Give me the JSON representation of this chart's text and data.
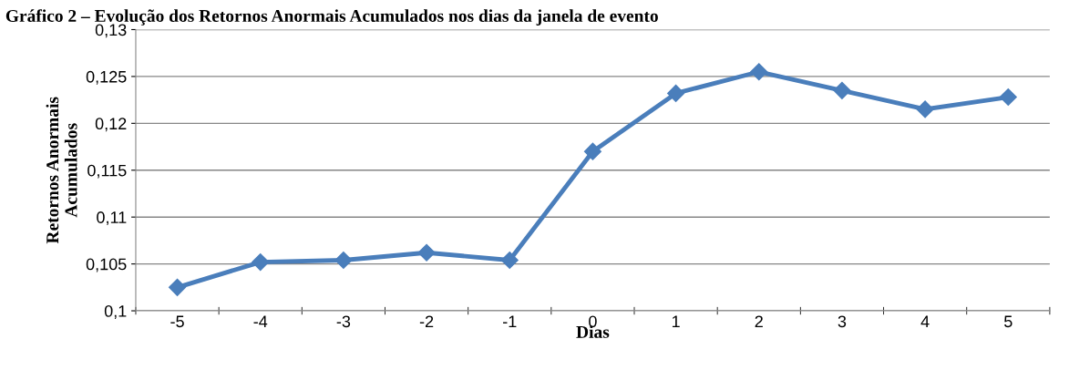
{
  "chart_data": {
    "type": "line",
    "title": "Gráfico 2 – Evolução dos Retornos Anormais Acumulados nos dias da janela de evento",
    "xlabel": "Dias",
    "ylabel": "Retornos Anormais\nAcumulados",
    "categories": [
      "-5",
      "-4",
      "-3",
      "-2",
      "-1",
      "0",
      "1",
      "2",
      "3",
      "4",
      "5"
    ],
    "series": [
      {
        "color": "#4a7ebb",
        "values": [
          0.1025,
          0.1052,
          0.1054,
          0.1062,
          0.1054,
          0.117,
          0.1232,
          0.1255,
          0.1235,
          0.1215,
          0.1228
        ]
      }
    ],
    "ylim": [
      0.1,
      0.13
    ],
    "yticks": [
      {
        "value": 0.1,
        "label": "0,1"
      },
      {
        "value": 0.105,
        "label": "0,105"
      },
      {
        "value": 0.11,
        "label": "0,11"
      },
      {
        "value": 0.115,
        "label": "0,115"
      },
      {
        "value": 0.12,
        "label": "0,12"
      },
      {
        "value": 0.125,
        "label": "0,125"
      },
      {
        "value": 0.13,
        "label": "0,13"
      }
    ],
    "grid": "y",
    "marker": "diamond",
    "line_style": "solid"
  }
}
